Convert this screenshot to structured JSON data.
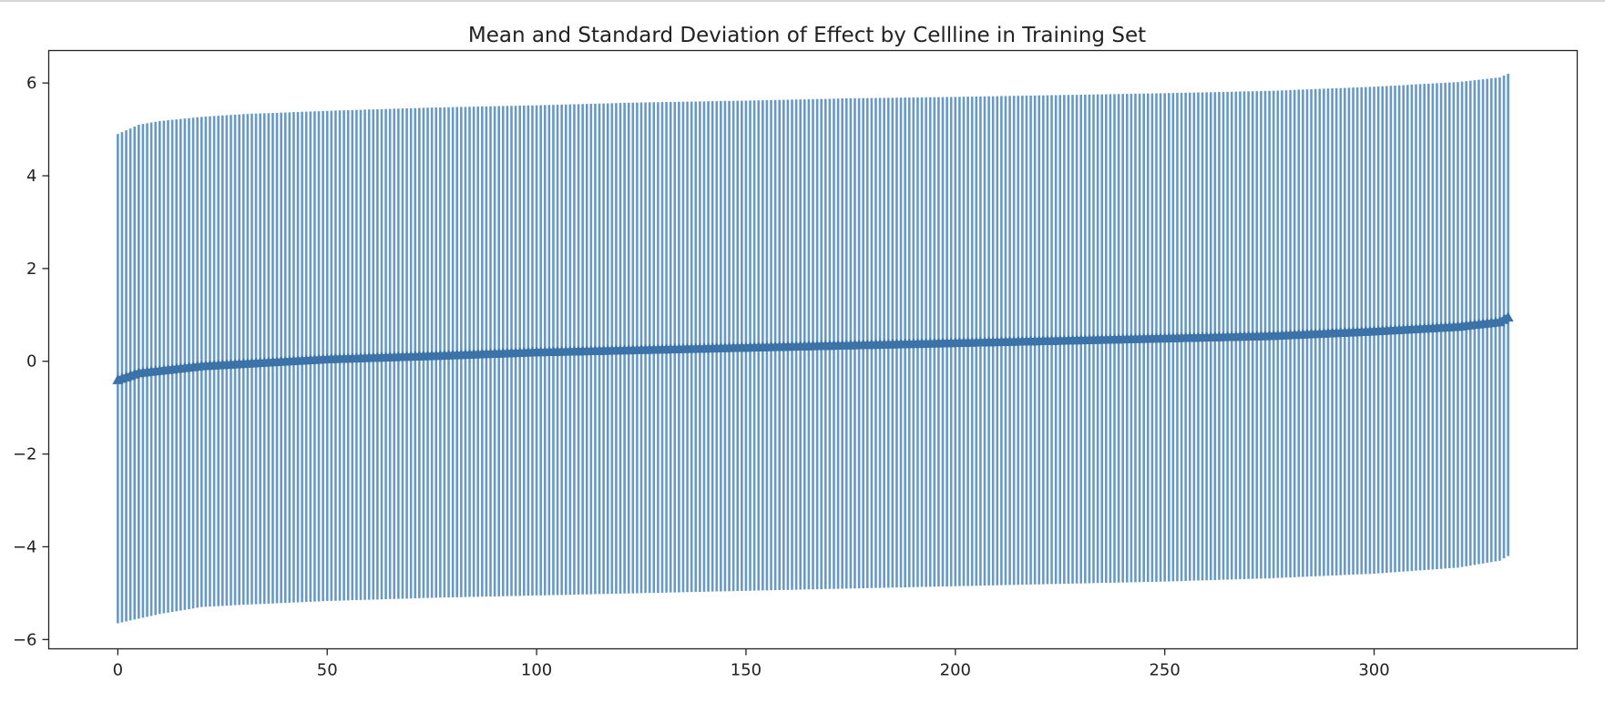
{
  "chart_data": {
    "type": "errorbar",
    "title": "Mean and Standard Deviation of Effect by Cellline in Training Set",
    "xlabel": "",
    "ylabel": "",
    "x_range": [
      0,
      332
    ],
    "xlim": [
      -16.5,
      348.5
    ],
    "ylim": [
      -6.2,
      6.7
    ],
    "x_ticks": [
      0,
      50,
      100,
      150,
      200,
      250,
      300
    ],
    "x_tick_labels": [
      "0",
      "50",
      "100",
      "150",
      "200",
      "250",
      "300"
    ],
    "y_ticks": [
      6,
      4,
      2,
      0,
      -2,
      -4,
      -6
    ],
    "y_tick_labels": [
      "6",
      "4",
      "2",
      "0",
      "−2",
      "−4",
      "−6"
    ],
    "grid": false,
    "legend": "none",
    "colors": {
      "errorbar": "#6699c4",
      "mean_line": "#3b73a8",
      "axes": "#222222"
    },
    "series": [
      {
        "marker": "triangle-up",
        "points": [
          {
            "x": 0,
            "mean": -0.4,
            "upper": 4.9,
            "lower": -5.65
          },
          {
            "x": 5,
            "mean": -0.25,
            "upper": 5.1,
            "lower": -5.55
          },
          {
            "x": 10,
            "mean": -0.2,
            "upper": 5.18,
            "lower": -5.45
          },
          {
            "x": 20,
            "mean": -0.1,
            "upper": 5.27,
            "lower": -5.3
          },
          {
            "x": 30,
            "mean": -0.05,
            "upper": 5.33,
            "lower": -5.25
          },
          {
            "x": 50,
            "mean": 0.05,
            "upper": 5.4,
            "lower": -5.17
          },
          {
            "x": 75,
            "mean": 0.12,
            "upper": 5.47,
            "lower": -5.1
          },
          {
            "x": 100,
            "mean": 0.2,
            "upper": 5.52,
            "lower": -5.05
          },
          {
            "x": 125,
            "mean": 0.25,
            "upper": 5.58,
            "lower": -5.0
          },
          {
            "x": 150,
            "mean": 0.3,
            "upper": 5.62,
            "lower": -4.95
          },
          {
            "x": 175,
            "mean": 0.35,
            "upper": 5.67,
            "lower": -4.9
          },
          {
            "x": 200,
            "mean": 0.4,
            "upper": 5.7,
            "lower": -4.85
          },
          {
            "x": 225,
            "mean": 0.45,
            "upper": 5.74,
            "lower": -4.8
          },
          {
            "x": 250,
            "mean": 0.5,
            "upper": 5.78,
            "lower": -4.75
          },
          {
            "x": 275,
            "mean": 0.55,
            "upper": 5.83,
            "lower": -4.68
          },
          {
            "x": 300,
            "mean": 0.65,
            "upper": 5.92,
            "lower": -4.58
          },
          {
            "x": 320,
            "mean": 0.75,
            "upper": 6.02,
            "lower": -4.45
          },
          {
            "x": 330,
            "mean": 0.85,
            "upper": 6.12,
            "lower": -4.3
          },
          {
            "x": 332,
            "mean": 0.95,
            "upper": 6.2,
            "lower": -4.2
          }
        ]
      }
    ]
  }
}
